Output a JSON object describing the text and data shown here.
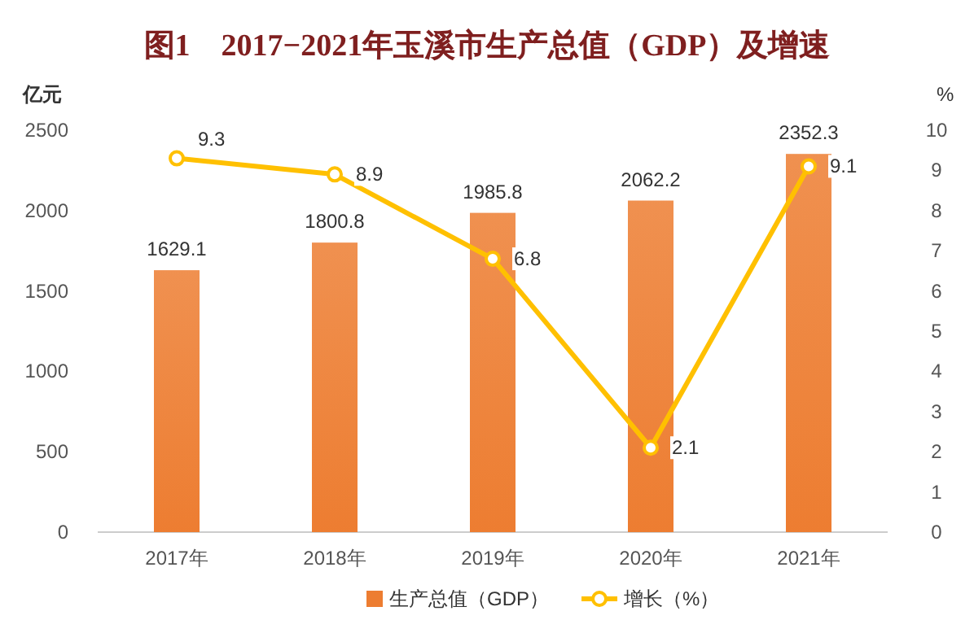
{
  "chart_data": {
    "type": "bar",
    "title": "图1　2017−2021年玉溪市生产总值（GDP）及增速",
    "ylabel": "亿元",
    "y2label": "%",
    "categories": [
      "2017年",
      "2018年",
      "2019年",
      "2020年",
      "2021年"
    ],
    "series": [
      {
        "name": "生产总值（GDP）",
        "color": "#ed7d31",
        "values": [
          1629.1,
          1800.8,
          1985.8,
          2062.2,
          2352.3
        ]
      },
      {
        "name": "增长（%）",
        "type": "line",
        "axis": "y2",
        "color": "#ffc000",
        "marker": "circle",
        "values": [
          9.3,
          8.9,
          6.8,
          2.1,
          9.1
        ]
      }
    ],
    "ylim": [
      0,
      2500
    ],
    "yticks": [
      0,
      500,
      1000,
      1500,
      2000,
      2500
    ],
    "y2lim": [
      0,
      10
    ],
    "y2ticks": [
      0,
      1,
      2,
      3,
      4,
      5,
      6,
      7,
      8,
      9,
      10
    ],
    "data_labels": true,
    "legend": "bottom",
    "grid": false
  }
}
